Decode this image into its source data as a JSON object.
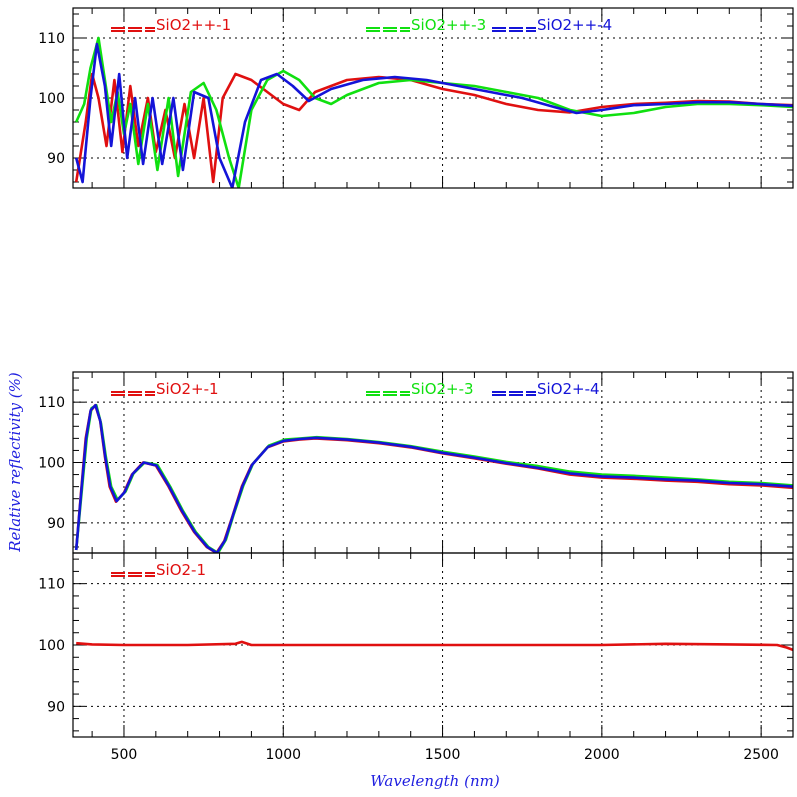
{
  "figure": {
    "xlabel": "Wavelength (nm)",
    "ylabel": "Relative reflectivity (%)"
  },
  "chart_data": [
    {
      "type": "line",
      "xlim": [
        340,
        2600
      ],
      "ylim": [
        85,
        115
      ],
      "xticks": [
        500,
        1000,
        1500,
        2000,
        2500
      ],
      "yticks": [
        90,
        100,
        110
      ],
      "grid": true,
      "series": [
        {
          "name": "SiO2++-1",
          "color": "#e01010",
          "points": [
            [
              350,
              86
            ],
            [
              380,
              96
            ],
            [
              400,
              104
            ],
            [
              420,
              100
            ],
            [
              445,
              92
            ],
            [
              470,
              103
            ],
            [
              495,
              91
            ],
            [
              520,
              102
            ],
            [
              545,
              92
            ],
            [
              575,
              100
            ],
            [
              600,
              91
            ],
            [
              630,
              98
            ],
            [
              660,
              90
            ],
            [
              690,
              99
            ],
            [
              720,
              90
            ],
            [
              750,
              100
            ],
            [
              780,
              86
            ],
            [
              810,
              100
            ],
            [
              850,
              104
            ],
            [
              900,
              103
            ],
            [
              950,
              101
            ],
            [
              1000,
              99
            ],
            [
              1050,
              98
            ],
            [
              1100,
              101
            ],
            [
              1200,
              103
            ],
            [
              1300,
              103.5
            ],
            [
              1400,
              103
            ],
            [
              1500,
              101.5
            ],
            [
              1600,
              100.5
            ],
            [
              1700,
              99
            ],
            [
              1800,
              98
            ],
            [
              1900,
              97.6
            ],
            [
              2000,
              98.5
            ],
            [
              2100,
              99
            ],
            [
              2200,
              99.2
            ],
            [
              2300,
              99.5
            ],
            [
              2400,
              99.4
            ],
            [
              2500,
              99
            ],
            [
              2600,
              98.8
            ]
          ]
        },
        {
          "name": "SiO2++-3",
          "color": "#10e010",
          "points": [
            [
              350,
              96
            ],
            [
              375,
              99
            ],
            [
              395,
              105
            ],
            [
              420,
              110
            ],
            [
              440,
              103
            ],
            [
              460,
              96
            ],
            [
              480,
              101
            ],
            [
              500,
              94
            ],
            [
              520,
              99
            ],
            [
              545,
              89
            ],
            [
              575,
              99
            ],
            [
              605,
              88
            ],
            [
              640,
              100
            ],
            [
              670,
              87
            ],
            [
              710,
              101
            ],
            [
              750,
              102.5
            ],
            [
              790,
              98
            ],
            [
              830,
              90
            ],
            [
              860,
              85
            ],
            [
              900,
              98
            ],
            [
              950,
              103
            ],
            [
              1000,
              104.5
            ],
            [
              1050,
              103
            ],
            [
              1100,
              100
            ],
            [
              1150,
              99
            ],
            [
              1200,
              100.5
            ],
            [
              1300,
              102.5
            ],
            [
              1400,
              103
            ],
            [
              1500,
              102.5
            ],
            [
              1600,
              102
            ],
            [
              1700,
              101
            ],
            [
              1800,
              100
            ],
            [
              1900,
              98
            ],
            [
              2000,
              97
            ],
            [
              2100,
              97.5
            ],
            [
              2200,
              98.5
            ],
            [
              2300,
              99
            ],
            [
              2400,
              99
            ],
            [
              2500,
              98.8
            ],
            [
              2600,
              98.5
            ]
          ]
        },
        {
          "name": "SiO2++-4",
          "color": "#1414d8",
          "points": [
            [
              350,
              90
            ],
            [
              370,
              86
            ],
            [
              395,
              100
            ],
            [
              415,
              109
            ],
            [
              440,
              102
            ],
            [
              460,
              92
            ],
            [
              485,
              104
            ],
            [
              510,
              90
            ],
            [
              535,
              100
            ],
            [
              560,
              89
            ],
            [
              590,
              100
            ],
            [
              620,
              89
            ],
            [
              655,
              100
            ],
            [
              685,
              88
            ],
            [
              720,
              101
            ],
            [
              765,
              100
            ],
            [
              800,
              90
            ],
            [
              840,
              85
            ],
            [
              880,
              96
            ],
            [
              930,
              103
            ],
            [
              980,
              104
            ],
            [
              1030,
              102
            ],
            [
              1080,
              99.5
            ],
            [
              1150,
              101.5
            ],
            [
              1250,
              103
            ],
            [
              1350,
              103.5
            ],
            [
              1450,
              103
            ],
            [
              1550,
              102
            ],
            [
              1650,
              101
            ],
            [
              1750,
              100
            ],
            [
              1850,
              98.5
            ],
            [
              1920,
              97.5
            ],
            [
              2000,
              98
            ],
            [
              2100,
              98.8
            ],
            [
              2200,
              99
            ],
            [
              2300,
              99.3
            ],
            [
              2400,
              99.3
            ],
            [
              2500,
              99
            ],
            [
              2600,
              98.7
            ]
          ]
        }
      ]
    },
    {
      "type": "line",
      "xlim": [
        340,
        2600
      ],
      "ylim": [
        85,
        115
      ],
      "xticks": [
        500,
        1000,
        1500,
        2000,
        2500
      ],
      "yticks": [
        90,
        100,
        110
      ],
      "grid": true,
      "series": [
        {
          "name": "SiO2+-1",
          "color": "#e01010",
          "points": [
            [
              350,
              85.5
            ],
            [
              365,
              95
            ],
            [
              380,
              104
            ],
            [
              395,
              108.5
            ],
            [
              410,
              109.5
            ],
            [
              425,
              107
            ],
            [
              440,
              101
            ],
            [
              455,
              96
            ],
            [
              475,
              93.5
            ],
            [
              500,
              95
            ],
            [
              525,
              98
            ],
            [
              560,
              100
            ],
            [
              600,
              99.5
            ],
            [
              640,
              96
            ],
            [
              680,
              92
            ],
            [
              720,
              88.5
            ],
            [
              760,
              86
            ],
            [
              790,
              85
            ],
            [
              815,
              87
            ],
            [
              840,
              91
            ],
            [
              870,
              96
            ],
            [
              900,
              99.5
            ],
            [
              950,
              102.5
            ],
            [
              1000,
              103.5
            ],
            [
              1050,
              103.8
            ],
            [
              1100,
              104
            ],
            [
              1200,
              103.7
            ],
            [
              1300,
              103.2
            ],
            [
              1400,
              102.5
            ],
            [
              1500,
              101.5
            ],
            [
              1600,
              100.7
            ],
            [
              1700,
              99.8
            ],
            [
              1800,
              99
            ],
            [
              1900,
              98
            ],
            [
              2000,
              97.5
            ],
            [
              2100,
              97.3
            ],
            [
              2200,
              97
            ],
            [
              2300,
              96.8
            ],
            [
              2400,
              96.4
            ],
            [
              2500,
              96.2
            ],
            [
              2600,
              95.8
            ]
          ]
        },
        {
          "name": "SiO2+-3",
          "color": "#10e010",
          "points": [
            [
              350,
              85.5
            ],
            [
              368,
              95.5
            ],
            [
              383,
              104
            ],
            [
              398,
              109
            ],
            [
              413,
              109.5
            ],
            [
              428,
              106.5
            ],
            [
              443,
              101
            ],
            [
              460,
              96
            ],
            [
              480,
              93.8
            ],
            [
              505,
              95.2
            ],
            [
              530,
              98.2
            ],
            [
              565,
              100
            ],
            [
              605,
              99.6
            ],
            [
              645,
              96
            ],
            [
              685,
              92
            ],
            [
              725,
              88.5
            ],
            [
              765,
              86
            ],
            [
              795,
              85
            ],
            [
              820,
              87.2
            ],
            [
              845,
              91.5
            ],
            [
              875,
              96.2
            ],
            [
              905,
              99.8
            ],
            [
              955,
              102.8
            ],
            [
              1005,
              103.8
            ],
            [
              1055,
              104
            ],
            [
              1105,
              104.2
            ],
            [
              1200,
              103.9
            ],
            [
              1300,
              103.4
            ],
            [
              1400,
              102.7
            ],
            [
              1500,
              101.8
            ],
            [
              1600,
              101
            ],
            [
              1700,
              100.1
            ],
            [
              1800,
              99.4
            ],
            [
              1900,
              98.5
            ],
            [
              2000,
              98
            ],
            [
              2100,
              97.8
            ],
            [
              2200,
              97.5
            ],
            [
              2300,
              97.2
            ],
            [
              2400,
              96.8
            ],
            [
              2500,
              96.6
            ],
            [
              2600,
              96.2
            ]
          ]
        },
        {
          "name": "SiO2+-4",
          "color": "#1414d8",
          "points": [
            [
              350,
              85.5
            ],
            [
              366,
              95.2
            ],
            [
              381,
              104
            ],
            [
              396,
              108.7
            ],
            [
              411,
              109.5
            ],
            [
              426,
              106.8
            ],
            [
              441,
              101
            ],
            [
              457,
              96
            ],
            [
              477,
              93.6
            ],
            [
              502,
              95.1
            ],
            [
              527,
              98.1
            ],
            [
              562,
              100
            ],
            [
              602,
              99.5
            ],
            [
              642,
              96
            ],
            [
              682,
              92
            ],
            [
              722,
              88.5
            ],
            [
              762,
              86
            ],
            [
              792,
              85
            ],
            [
              817,
              87.1
            ],
            [
              842,
              91.2
            ],
            [
              872,
              96.1
            ],
            [
              902,
              99.6
            ],
            [
              952,
              102.6
            ],
            [
              1002,
              103.6
            ],
            [
              1052,
              103.9
            ],
            [
              1102,
              104.1
            ],
            [
              1200,
              103.8
            ],
            [
              1300,
              103.3
            ],
            [
              1400,
              102.6
            ],
            [
              1500,
              101.6
            ],
            [
              1600,
              100.8
            ],
            [
              1700,
              99.9
            ],
            [
              1800,
              99.1
            ],
            [
              1900,
              98.2
            ],
            [
              2000,
              97.7
            ],
            [
              2100,
              97.5
            ],
            [
              2200,
              97.2
            ],
            [
              2300,
              97
            ],
            [
              2400,
              96.6
            ],
            [
              2500,
              96.4
            ],
            [
              2600,
              96
            ]
          ]
        }
      ]
    },
    {
      "type": "line",
      "xlim": [
        340,
        2600
      ],
      "ylim": [
        85,
        115
      ],
      "xticks": [
        500,
        1000,
        1500,
        2000,
        2500
      ],
      "yticks": [
        90,
        100,
        110
      ],
      "grid": true,
      "series": [
        {
          "name": "SiO2-1",
          "color": "#e01010",
          "points": [
            [
              350,
              100.3
            ],
            [
              400,
              100.1
            ],
            [
              500,
              100
            ],
            [
              700,
              100
            ],
            [
              850,
              100.2
            ],
            [
              870,
              100.5
            ],
            [
              900,
              100
            ],
            [
              1200,
              100
            ],
            [
              1500,
              100
            ],
            [
              1800,
              100
            ],
            [
              2000,
              100
            ],
            [
              2200,
              100.2
            ],
            [
              2400,
              100.1
            ],
            [
              2550,
              100
            ],
            [
              2580,
              99.6
            ],
            [
              2600,
              99.2
            ]
          ]
        }
      ]
    }
  ]
}
